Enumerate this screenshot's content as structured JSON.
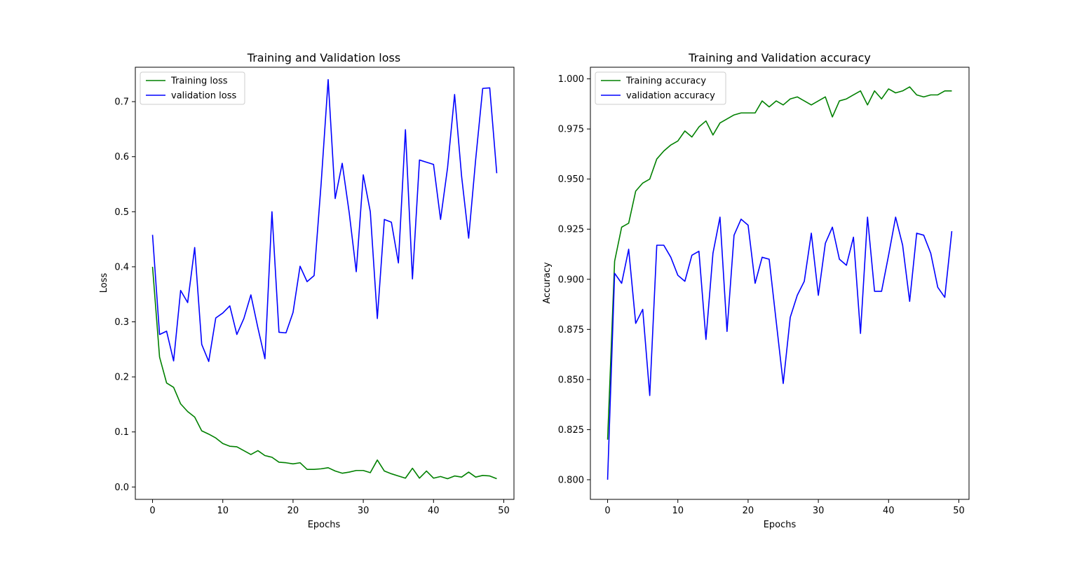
{
  "chart_data": [
    {
      "type": "line",
      "title": "Training and Validation loss",
      "xlabel": "Epochs",
      "ylabel": "Loss",
      "xlim": [
        -2.45,
        51.45
      ],
      "ylim": [
        -0.0225,
        0.7625
      ],
      "xticks": [
        0,
        10,
        20,
        30,
        40,
        50
      ],
      "yticks": [
        0.0,
        0.1,
        0.2,
        0.3,
        0.4,
        0.5,
        0.6,
        0.7
      ],
      "ytick_format": 1,
      "grid": false,
      "legend_position": "upper left",
      "x": [
        0,
        1,
        2,
        3,
        4,
        5,
        6,
        7,
        8,
        9,
        10,
        11,
        12,
        13,
        14,
        15,
        16,
        17,
        18,
        19,
        20,
        21,
        22,
        23,
        24,
        25,
        26,
        27,
        28,
        29,
        30,
        31,
        32,
        33,
        34,
        35,
        36,
        37,
        38,
        39,
        40,
        41,
        42,
        43,
        44,
        45,
        46,
        47,
        48,
        49
      ],
      "series": [
        {
          "name": "Training loss",
          "color": "#008000",
          "values": [
            0.4,
            0.236,
            0.189,
            0.181,
            0.151,
            0.137,
            0.127,
            0.102,
            0.096,
            0.089,
            0.079,
            0.074,
            0.073,
            0.066,
            0.059,
            0.066,
            0.057,
            0.054,
            0.045,
            0.044,
            0.042,
            0.044,
            0.032,
            0.032,
            0.033,
            0.035,
            0.029,
            0.025,
            0.027,
            0.03,
            0.03,
            0.026,
            0.049,
            0.029,
            0.024,
            0.02,
            0.016,
            0.034,
            0.016,
            0.029,
            0.016,
            0.019,
            0.015,
            0.02,
            0.018,
            0.027,
            0.018,
            0.021,
            0.02,
            0.015
          ]
        },
        {
          "name": "validation loss",
          "color": "#0000ff",
          "values": [
            0.458,
            0.277,
            0.283,
            0.229,
            0.357,
            0.335,
            0.435,
            0.259,
            0.228,
            0.307,
            0.316,
            0.329,
            0.277,
            0.306,
            0.349,
            0.289,
            0.233,
            0.5,
            0.281,
            0.28,
            0.317,
            0.401,
            0.373,
            0.384,
            0.551,
            0.74,
            0.524,
            0.588,
            0.498,
            0.391,
            0.567,
            0.5,
            0.306,
            0.486,
            0.481,
            0.407,
            0.649,
            0.378,
            0.594,
            0.59,
            0.586,
            0.486,
            0.58,
            0.713,
            0.564,
            0.452,
            0.595,
            0.724,
            0.725,
            0.57
          ]
        }
      ]
    },
    {
      "type": "line",
      "title": "Training and Validation accuracy",
      "xlabel": "Epochs",
      "ylabel": "Accuracy",
      "xlim": [
        -2.45,
        51.45
      ],
      "ylim": [
        0.7902,
        1.0058
      ],
      "xticks": [
        0,
        10,
        20,
        30,
        40,
        50
      ],
      "yticks": [
        0.8,
        0.825,
        0.85,
        0.875,
        0.9,
        0.925,
        0.95,
        0.975,
        1.0
      ],
      "ytick_format": 3,
      "grid": false,
      "legend_position": "upper left",
      "x": [
        0,
        1,
        2,
        3,
        4,
        5,
        6,
        7,
        8,
        9,
        10,
        11,
        12,
        13,
        14,
        15,
        16,
        17,
        18,
        19,
        20,
        21,
        22,
        23,
        24,
        25,
        26,
        27,
        28,
        29,
        30,
        31,
        32,
        33,
        34,
        35,
        36,
        37,
        38,
        39,
        40,
        41,
        42,
        43,
        44,
        45,
        46,
        47,
        48,
        49
      ],
      "series": [
        {
          "name": "Training accuracy",
          "color": "#008000",
          "values": [
            0.82,
            0.909,
            0.926,
            0.928,
            0.944,
            0.948,
            0.95,
            0.96,
            0.964,
            0.967,
            0.969,
            0.974,
            0.971,
            0.976,
            0.979,
            0.972,
            0.978,
            0.98,
            0.982,
            0.983,
            0.983,
            0.983,
            0.989,
            0.986,
            0.989,
            0.987,
            0.99,
            0.991,
            0.989,
            0.987,
            0.989,
            0.991,
            0.981,
            0.989,
            0.99,
            0.992,
            0.994,
            0.987,
            0.994,
            0.99,
            0.995,
            0.993,
            0.994,
            0.996,
            0.992,
            0.991,
            0.992,
            0.992,
            0.994,
            0.994
          ]
        },
        {
          "name": "validation accuracy",
          "color": "#0000ff",
          "values": [
            0.8,
            0.903,
            0.898,
            0.915,
            0.878,
            0.885,
            0.842,
            0.917,
            0.917,
            0.911,
            0.902,
            0.899,
            0.912,
            0.914,
            0.87,
            0.913,
            0.931,
            0.874,
            0.922,
            0.93,
            0.927,
            0.898,
            0.911,
            0.91,
            0.879,
            0.848,
            0.881,
            0.892,
            0.899,
            0.923,
            0.892,
            0.918,
            0.926,
            0.91,
            0.907,
            0.921,
            0.873,
            0.931,
            0.894,
            0.894,
            0.912,
            0.931,
            0.917,
            0.889,
            0.923,
            0.922,
            0.913,
            0.896,
            0.891,
            0.924
          ]
        }
      ]
    }
  ]
}
